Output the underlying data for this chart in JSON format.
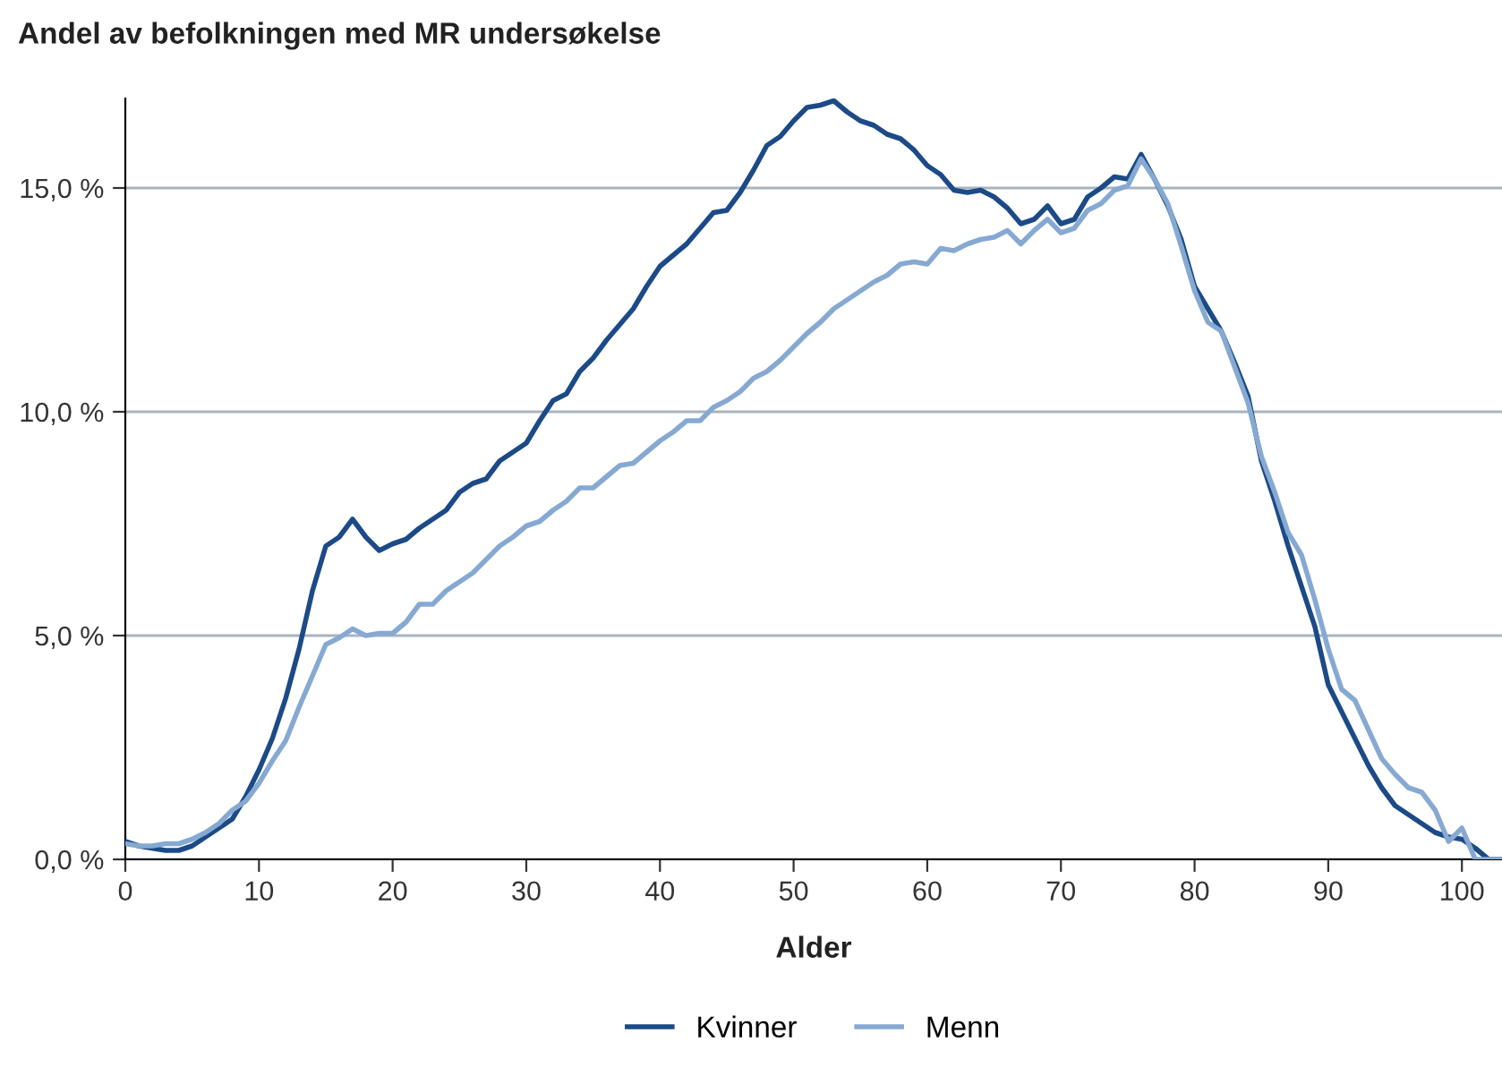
{
  "chart_data": {
    "type": "line",
    "title": "Andel av befolkningen med MR undersøkelse",
    "xlabel": "Alder",
    "x": [
      0,
      1,
      2,
      3,
      4,
      5,
      6,
      7,
      8,
      9,
      10,
      11,
      12,
      13,
      14,
      15,
      16,
      17,
      18,
      19,
      20,
      21,
      22,
      23,
      24,
      25,
      26,
      27,
      28,
      29,
      30,
      31,
      32,
      33,
      34,
      35,
      36,
      37,
      38,
      39,
      40,
      41,
      42,
      43,
      44,
      45,
      46,
      47,
      48,
      49,
      50,
      51,
      52,
      53,
      54,
      55,
      56,
      57,
      58,
      59,
      60,
      61,
      62,
      63,
      64,
      65,
      66,
      67,
      68,
      69,
      70,
      71,
      72,
      73,
      74,
      75,
      76,
      77,
      78,
      79,
      80,
      81,
      82,
      83,
      84,
      85,
      86,
      87,
      88,
      89,
      90,
      91,
      92,
      93,
      94,
      95,
      96,
      97,
      98,
      99,
      100,
      101,
      102,
      103
    ],
    "series": [
      {
        "name": "Kvinner",
        "color": "#1b4a87",
        "values": [
          0.4,
          0.3,
          0.25,
          0.2,
          0.2,
          0.3,
          0.5,
          0.7,
          0.9,
          1.4,
          2.0,
          2.7,
          3.6,
          4.7,
          6.0,
          7.0,
          7.2,
          7.6,
          7.2,
          6.9,
          7.05,
          7.15,
          7.4,
          7.6,
          7.8,
          8.2,
          8.4,
          8.5,
          8.9,
          9.1,
          9.3,
          9.8,
          10.25,
          10.4,
          10.9,
          11.2,
          11.6,
          11.95,
          12.3,
          12.8,
          13.25,
          13.5,
          13.75,
          14.1,
          14.45,
          14.5,
          14.9,
          15.4,
          15.95,
          16.15,
          16.5,
          16.8,
          16.85,
          16.95,
          16.7,
          16.5,
          16.4,
          16.2,
          16.1,
          15.85,
          15.5,
          15.3,
          14.95,
          14.9,
          14.95,
          14.8,
          14.55,
          14.2,
          14.3,
          14.6,
          14.2,
          14.3,
          14.8,
          15.0,
          15.25,
          15.2,
          15.75,
          15.2,
          14.6,
          13.85,
          12.8,
          12.3,
          11.8,
          11.1,
          10.35,
          8.9,
          8.0,
          7.0,
          6.1,
          5.2,
          3.9,
          3.3,
          2.7,
          2.1,
          1.6,
          1.2,
          1.0,
          0.8,
          0.6,
          0.5,
          0.45,
          0.25,
          0.0,
          0.0
        ]
      },
      {
        "name": "Menn",
        "color": "#86a9d2",
        "values": [
          0.35,
          0.3,
          0.3,
          0.35,
          0.35,
          0.45,
          0.6,
          0.8,
          1.1,
          1.3,
          1.7,
          2.2,
          2.65,
          3.4,
          4.1,
          4.8,
          4.95,
          5.15,
          5.0,
          5.05,
          5.05,
          5.3,
          5.7,
          5.7,
          6.0,
          6.2,
          6.4,
          6.7,
          7.0,
          7.2,
          7.45,
          7.55,
          7.8,
          8.0,
          8.3,
          8.3,
          8.55,
          8.8,
          8.85,
          9.1,
          9.35,
          9.55,
          9.8,
          9.8,
          10.1,
          10.25,
          10.45,
          10.75,
          10.9,
          11.15,
          11.45,
          11.75,
          12.0,
          12.3,
          12.5,
          12.7,
          12.9,
          13.05,
          13.3,
          13.35,
          13.3,
          13.65,
          13.6,
          13.75,
          13.85,
          13.9,
          14.05,
          13.75,
          14.05,
          14.3,
          14.0,
          14.1,
          14.5,
          14.65,
          14.95,
          15.05,
          15.65,
          15.2,
          14.65,
          13.7,
          12.7,
          12.0,
          11.8,
          11.0,
          10.2,
          9.0,
          8.2,
          7.3,
          6.8,
          5.8,
          4.7,
          3.8,
          3.55,
          2.9,
          2.25,
          1.9,
          1.6,
          1.5,
          1.1,
          0.4,
          0.7,
          0.0,
          0.0,
          0.0
        ]
      }
    ],
    "xlim": [
      0,
      103
    ],
    "xticks": [
      0,
      10,
      20,
      30,
      40,
      50,
      60,
      70,
      80,
      90,
      100
    ],
    "ylim": [
      0,
      17
    ],
    "yticks": [
      {
        "value": 0,
        "label": "0,0 %"
      },
      {
        "value": 5,
        "label": "5,0 %"
      },
      {
        "value": 10,
        "label": "10,0 %"
      },
      {
        "value": 15,
        "label": "15,0 %"
      }
    ],
    "grid": "y",
    "legend": "bottom",
    "marker": "none",
    "line_style": "solid"
  }
}
